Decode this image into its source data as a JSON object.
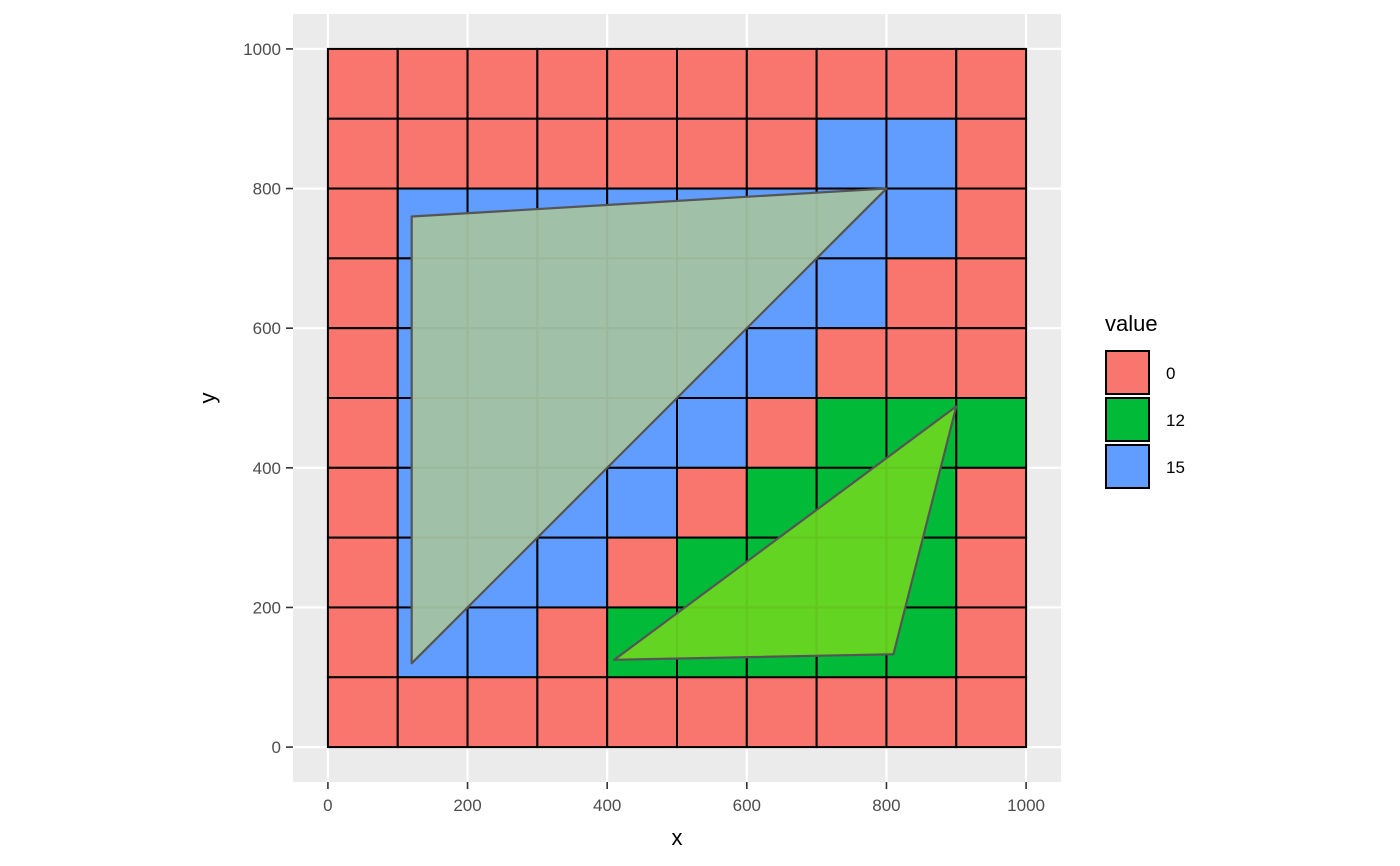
{
  "chart_data": {
    "type": "heatmap",
    "xlabel": "x",
    "ylabel": "y",
    "xlim": [
      -50,
      1050
    ],
    "ylim": [
      -50,
      1050
    ],
    "x_ticks": [
      0,
      200,
      400,
      600,
      800,
      1000
    ],
    "y_ticks": [
      0,
      200,
      400,
      600,
      800,
      1000
    ],
    "x_tick_labels": [
      "0",
      "200",
      "400",
      "600",
      "800",
      "1000"
    ],
    "y_tick_labels": [
      "0",
      "200",
      "400",
      "600",
      "800",
      "1000"
    ],
    "grid": true,
    "cell_size": 100,
    "cell_centers_x": [
      50,
      150,
      250,
      350,
      450,
      550,
      650,
      750,
      850,
      950
    ],
    "cell_centers_y_top_to_bottom": [
      950,
      850,
      750,
      650,
      550,
      450,
      350,
      250,
      150,
      50
    ],
    "values": [
      [
        0,
        0,
        0,
        0,
        0,
        0,
        0,
        0,
        0,
        0
      ],
      [
        0,
        0,
        0,
        0,
        0,
        0,
        0,
        15,
        15,
        0
      ],
      [
        0,
        15,
        15,
        15,
        15,
        15,
        15,
        15,
        15,
        0
      ],
      [
        0,
        15,
        15,
        15,
        15,
        15,
        15,
        15,
        0,
        0
      ],
      [
        0,
        15,
        15,
        15,
        15,
        15,
        15,
        0,
        0,
        0
      ],
      [
        0,
        15,
        15,
        15,
        15,
        15,
        0,
        12,
        12,
        12
      ],
      [
        0,
        15,
        15,
        15,
        15,
        0,
        12,
        12,
        12,
        0
      ],
      [
        0,
        15,
        15,
        15,
        0,
        12,
        12,
        12,
        12,
        0
      ],
      [
        0,
        15,
        15,
        0,
        12,
        12,
        12,
        12,
        12,
        0
      ],
      [
        0,
        0,
        0,
        0,
        0,
        0,
        0,
        0,
        0,
        0
      ]
    ],
    "legend": {
      "title": "value",
      "position": "right",
      "entries": [
        {
          "label": "0",
          "color": "#F8766D"
        },
        {
          "label": "12",
          "color": "#00BA38"
        },
        {
          "label": "15",
          "color": "#619CFF"
        }
      ]
    },
    "polygons": [
      {
        "points": [
          [
            120,
            760
          ],
          [
            800,
            800
          ],
          [
            120,
            120
          ]
        ],
        "fill": "#a3c2a3",
        "stroke": "#555555"
      },
      {
        "points": [
          [
            410,
            125
          ],
          [
            810,
            133
          ],
          [
            900,
            488
          ]
        ],
        "fill": "#6bd620",
        "stroke": "#555555"
      }
    ],
    "colors": {
      "panel_background": "#EBEBEB",
      "grid_line": "#FFFFFF",
      "cell_border": "#000000"
    }
  }
}
